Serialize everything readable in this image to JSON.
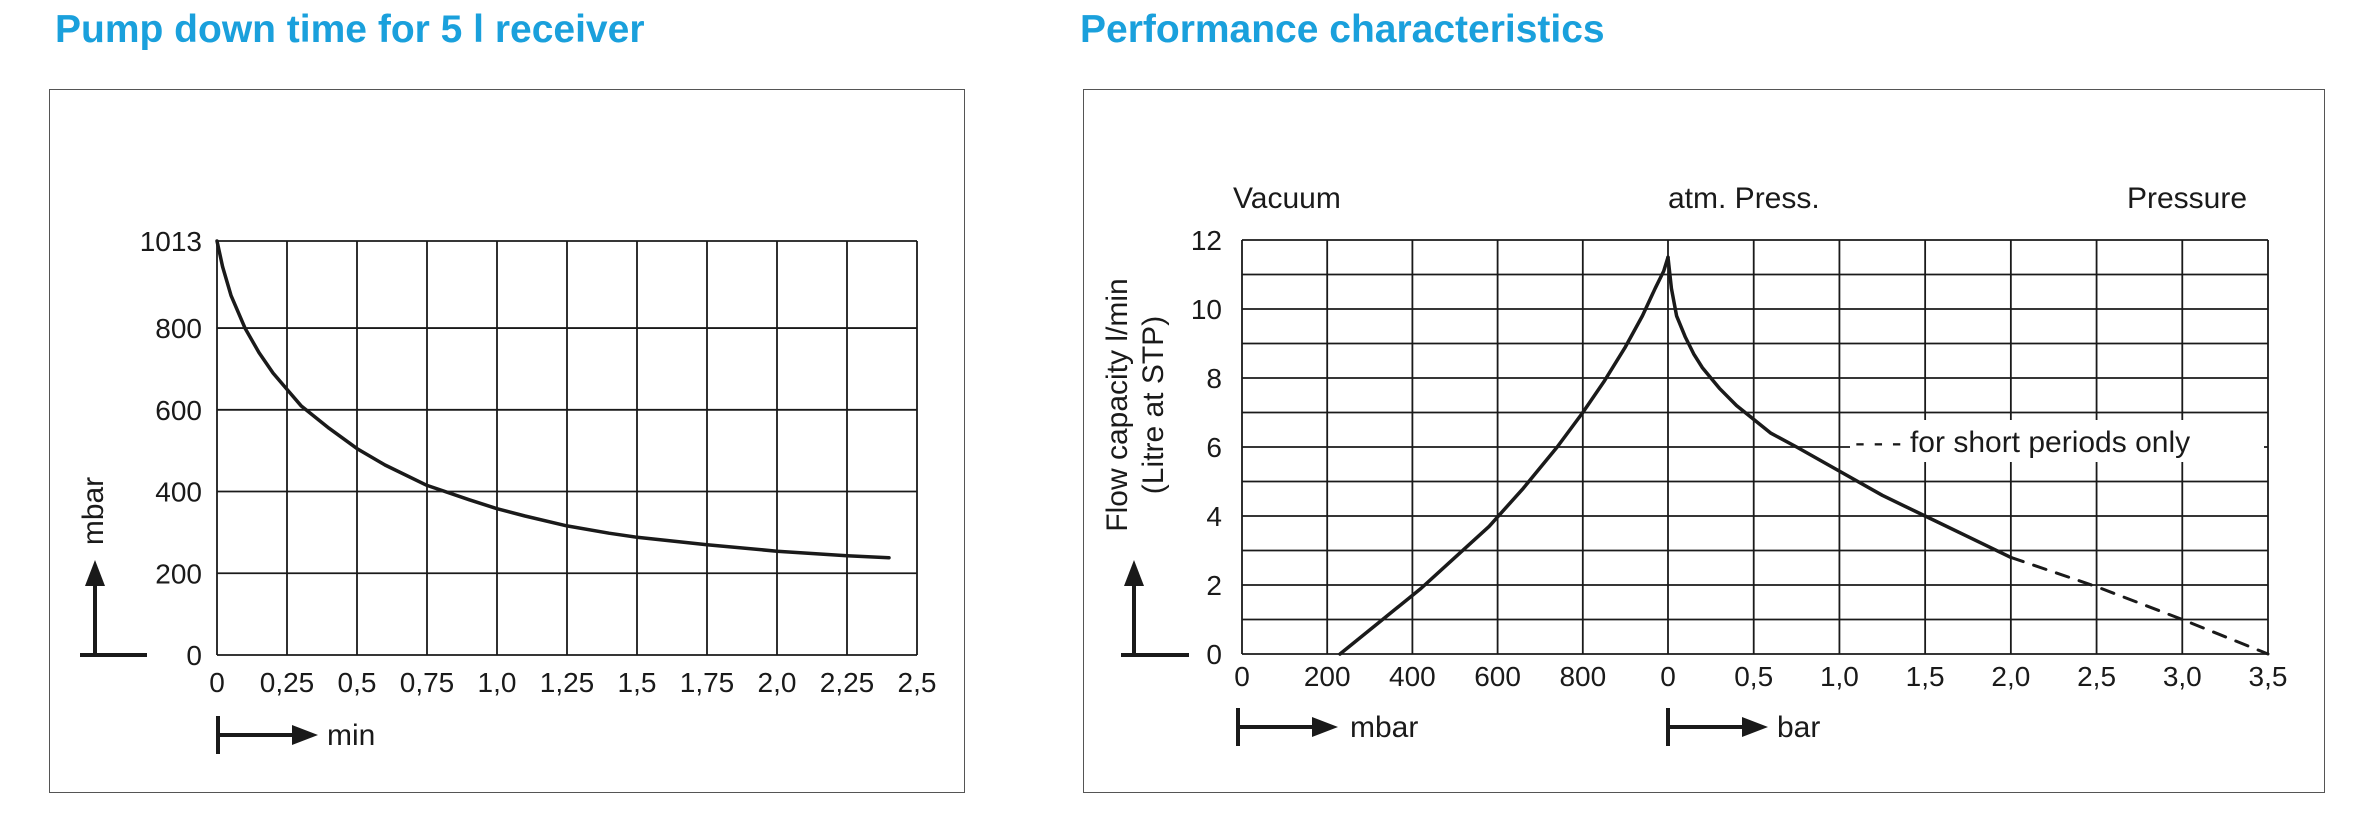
{
  "colors": {
    "title": "#1aa0dc",
    "line": "#1a1a1a",
    "grid": "#1a1a1a"
  },
  "chart_data": [
    {
      "type": "line",
      "title": "Pump down time for 5 l receiver",
      "xlabel": "min",
      "ylabel": "mbar",
      "xlim": [
        0,
        2.5
      ],
      "ylim": [
        0,
        1013
      ],
      "x_ticks": [
        0,
        0.25,
        0.5,
        0.75,
        1.0,
        1.25,
        1.5,
        1.75,
        2.0,
        2.25,
        2.5
      ],
      "x_tick_labels": [
        "0",
        "0,25",
        "0,5",
        "0,75",
        "1,0",
        "1,25",
        "1,5",
        "1,75",
        "2,0",
        "2,25",
        "2,5"
      ],
      "y_ticks": [
        0,
        200,
        400,
        600,
        800,
        1013
      ],
      "y_tick_labels": [
        "0",
        "200",
        "400",
        "600",
        "800",
        "1013"
      ],
      "grid": true,
      "series": [
        {
          "x": [
            0,
            0.02,
            0.05,
            0.1,
            0.15,
            0.2,
            0.25,
            0.3,
            0.4,
            0.5,
            0.6,
            0.75,
            0.9,
            1.0,
            1.1,
            1.25,
            1.4,
            1.5,
            1.75,
            2.0,
            2.25,
            2.4
          ],
          "y": [
            1013,
            950,
            880,
            800,
            740,
            690,
            650,
            610,
            555,
            505,
            465,
            415,
            380,
            358,
            340,
            316,
            298,
            288,
            270,
            254,
            243,
            238
          ]
        }
      ]
    },
    {
      "type": "line",
      "title": "Performance characteristics",
      "ylabel_lines": [
        "Flow capacity l/min",
        "(Litre at STP)"
      ],
      "region_labels": {
        "left": "Vacuum",
        "center": "atm. Press.",
        "right": "Pressure"
      },
      "vacuum_axis": {
        "label": "mbar",
        "ticks": [
          0,
          200,
          400,
          600,
          800
        ],
        "tick_labels": [
          "0",
          "200",
          "400",
          "600",
          "800"
        ],
        "range": [
          0,
          1000
        ]
      },
      "pressure_axis": {
        "label": "bar",
        "ticks": [
          0,
          0.5,
          1.0,
          1.5,
          2.0,
          2.5,
          3.0,
          3.5
        ],
        "tick_labels": [
          "0",
          "0,5",
          "1,0",
          "1,5",
          "2,0",
          "2,5",
          "3,0",
          "3,5"
        ],
        "range": [
          0,
          3.5
        ]
      },
      "ylim": [
        0,
        12
      ],
      "y_ticks": [
        0,
        2,
        4,
        6,
        8,
        10,
        12
      ],
      "y_tick_labels": [
        "0",
        "2",
        "4",
        "6",
        "8",
        "10",
        "12"
      ],
      "grid": true,
      "annotation": "- - - for short periods only",
      "series": [
        {
          "segment": "vacuum",
          "x": [
            230,
            320,
            420,
            500,
            580,
            660,
            740,
            800,
            850,
            900,
            940,
            970,
            990,
            1000
          ],
          "y": [
            0,
            0.9,
            1.9,
            2.8,
            3.7,
            4.8,
            6.0,
            7.0,
            7.9,
            8.9,
            9.8,
            10.6,
            11.1,
            11.5
          ]
        },
        {
          "segment": "pressure",
          "x": [
            0,
            0.02,
            0.05,
            0.1,
            0.15,
            0.2,
            0.3,
            0.4,
            0.5,
            0.6,
            0.75,
            1.0,
            1.25,
            1.5,
            1.75,
            2.0
          ],
          "y": [
            11.5,
            10.6,
            9.8,
            9.2,
            8.7,
            8.3,
            7.7,
            7.2,
            6.8,
            6.4,
            6.0,
            5.3,
            4.6,
            4.0,
            3.4,
            2.8
          ]
        },
        {
          "segment": "pressure",
          "style": "dashed",
          "x": [
            2.0,
            2.5,
            3.0,
            3.5
          ],
          "y": [
            2.8,
            1.95,
            1.0,
            0
          ]
        }
      ]
    }
  ]
}
